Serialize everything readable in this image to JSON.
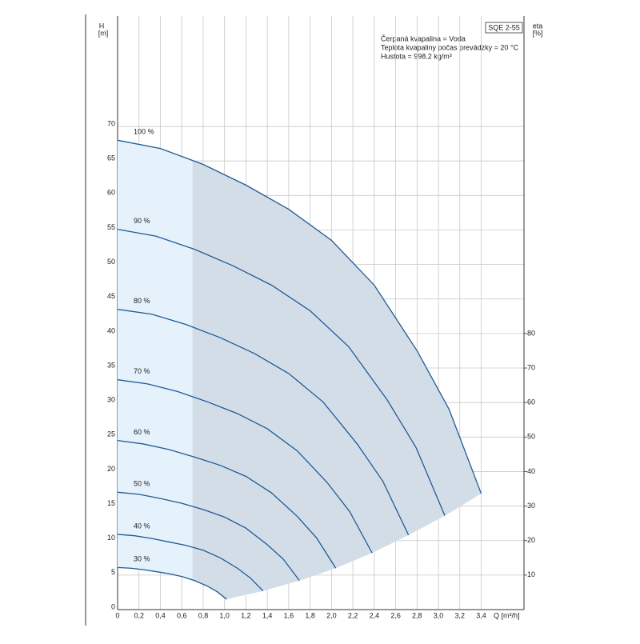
{
  "chart_data": {
    "type": "line",
    "title": "SQE 2-55",
    "annotations": [
      "Čerpaná kvapalina = Voda",
      "Teplota kvapaliny počas prevádzky = 20 °C",
      "Hustota = 998.2 kg/m³"
    ],
    "y_label": "H",
    "y_unit": "[m]",
    "y2_label": "eta",
    "y2_unit": "[%]",
    "x_label": "Q [m³/h]",
    "xlim": [
      0,
      3.8
    ],
    "xticks": [
      0,
      {
        "value": 0.2,
        "label": "0,2"
      },
      {
        "value": 0.4,
        "label": "0,4"
      },
      {
        "value": 0.6,
        "label": "0,6"
      },
      {
        "value": 0.8,
        "label": "0,8"
      },
      {
        "value": 1.0,
        "label": "1,0"
      },
      {
        "value": 1.2,
        "label": "1,2"
      },
      {
        "value": 1.4,
        "label": "1,4"
      },
      {
        "value": 1.6,
        "label": "1,6"
      },
      {
        "value": 1.8,
        "label": "1,8"
      },
      {
        "value": 2.0,
        "label": "2,0"
      },
      {
        "value": 2.2,
        "label": "2,2"
      },
      {
        "value": 2.4,
        "label": "2,4"
      },
      {
        "value": 2.6,
        "label": "2,6"
      },
      {
        "value": 2.8,
        "label": "2,8"
      },
      {
        "value": 3.0,
        "label": "3,0"
      },
      {
        "value": 3.2,
        "label": "3,2"
      },
      {
        "value": 3.4,
        "label": "3,4"
      }
    ],
    "ylim": [
      0,
      86
    ],
    "yticks": [
      0,
      5,
      10,
      15,
      20,
      25,
      30,
      35,
      40,
      45,
      50,
      55,
      60,
      65,
      70
    ],
    "y2lim": [
      0,
      172
    ],
    "y2ticks": [
      10,
      20,
      30,
      40,
      50,
      60,
      70,
      80
    ],
    "grid": true,
    "highlight_from_x": 0.7,
    "line_color": "#1f5a96",
    "area_color": "#d3dde8",
    "low_area_color": "#e6f2fb",
    "series": [
      {
        "name": "100 %",
        "x": [
          0,
          0.4,
          0.8,
          1.2,
          1.6,
          2.0,
          2.4,
          2.8,
          3.1,
          3.4
        ],
        "values": [
          68,
          66.8,
          64.5,
          61.5,
          58,
          53.5,
          47,
          37.5,
          29,
          16.8
        ]
      },
      {
        "name": "90 %",
        "x": [
          0,
          0.36,
          0.72,
          1.08,
          1.44,
          1.8,
          2.16,
          2.52,
          2.79,
          3.06
        ],
        "values": [
          55.1,
          54.1,
          52.2,
          49.8,
          47.0,
          43.3,
          38.1,
          30.4,
          23.5,
          13.6
        ]
      },
      {
        "name": "80 %",
        "x": [
          0,
          0.32,
          0.64,
          0.96,
          1.28,
          1.6,
          1.92,
          2.24,
          2.48,
          2.72
        ],
        "values": [
          43.5,
          42.8,
          41.3,
          39.4,
          37.1,
          34.2,
          30.1,
          24.0,
          18.6,
          10.8
        ]
      },
      {
        "name": "70 %",
        "x": [
          0,
          0.28,
          0.56,
          0.84,
          1.12,
          1.4,
          1.68,
          1.96,
          2.17,
          2.38
        ],
        "values": [
          33.3,
          32.7,
          31.6,
          30.1,
          28.4,
          26.2,
          23.0,
          18.4,
          14.2,
          8.2
        ]
      },
      {
        "name": "60 %",
        "x": [
          0,
          0.24,
          0.48,
          0.72,
          0.96,
          1.2,
          1.44,
          1.68,
          1.86,
          2.04
        ],
        "values": [
          24.5,
          24.0,
          23.2,
          22.1,
          20.9,
          19.3,
          16.9,
          13.5,
          10.4,
          6.0
        ]
      },
      {
        "name": "50 %",
        "x": [
          0,
          0.2,
          0.4,
          0.6,
          0.8,
          1.0,
          1.2,
          1.4,
          1.55,
          1.7
        ],
        "values": [
          17,
          16.7,
          16.1,
          15.4,
          14.5,
          13.4,
          11.8,
          9.4,
          7.3,
          4.2
        ]
      },
      {
        "name": "40 %",
        "x": [
          0,
          0.16,
          0.32,
          0.48,
          0.64,
          0.8,
          0.96,
          1.12,
          1.24,
          1.36
        ],
        "values": [
          10.9,
          10.7,
          10.3,
          9.8,
          9.3,
          8.6,
          7.5,
          6.0,
          4.6,
          2.7
        ]
      },
      {
        "name": "30 %",
        "x": [
          0,
          0.12,
          0.24,
          0.36,
          0.48,
          0.6,
          0.72,
          0.84,
          0.93,
          1.02
        ],
        "values": [
          6.1,
          6.0,
          5.8,
          5.5,
          5.2,
          4.8,
          4.2,
          3.4,
          2.6,
          1.5
        ]
      }
    ]
  }
}
